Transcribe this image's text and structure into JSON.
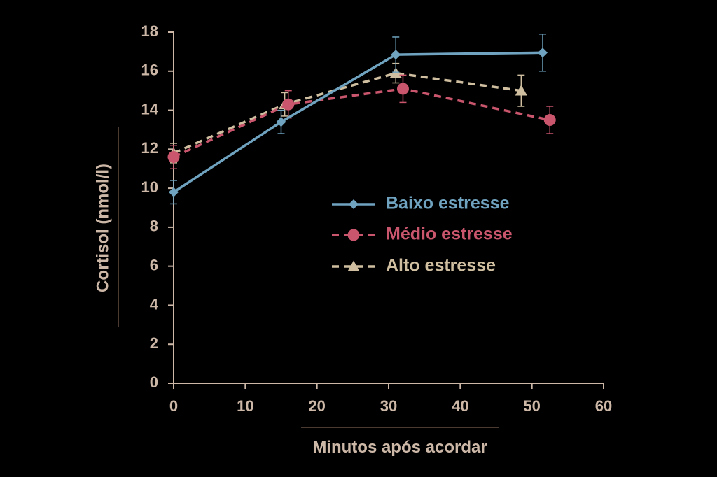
{
  "chart_data": {
    "type": "line",
    "xlabel": "Minutos após acordar",
    "ylabel": "Cortisol (nmol/l)",
    "xlim": [
      0,
      60
    ],
    "ylim": [
      0,
      18
    ],
    "xticks": [
      "0",
      "10",
      "20",
      "30",
      "40",
      "50",
      "60"
    ],
    "yticks": [
      "0",
      "2",
      "4",
      "6",
      "8",
      "10",
      "12",
      "14",
      "16",
      "18"
    ],
    "grid": false,
    "legend_position": "center-right",
    "series": [
      {
        "name": "Baixo estresse",
        "color": "#6fa3bf",
        "line_style": "solid",
        "marker": "diamond",
        "points": [
          {
            "x": 0,
            "y": 9.8,
            "err": 0.6
          },
          {
            "x": 15,
            "y": 13.4,
            "err": 0.6
          },
          {
            "x": 31,
            "y": 16.85,
            "err": 0.9
          },
          {
            "x": 51.5,
            "y": 16.95,
            "err": 0.95
          }
        ]
      },
      {
        "name": "Médio estresse",
        "color": "#c9566d",
        "line_style": "dashed",
        "marker": "circle",
        "points": [
          {
            "x": 0,
            "y": 11.6,
            "err": 0.6
          },
          {
            "x": 16,
            "y": 14.3,
            "err": 0.7
          },
          {
            "x": 32,
            "y": 15.1,
            "err": 0.7
          },
          {
            "x": 52.5,
            "y": 13.5,
            "err": 0.7
          }
        ]
      },
      {
        "name": "Alto estresse",
        "color": "#cfbfa0",
        "line_style": "dashed",
        "marker": "triangle",
        "points": [
          {
            "x": 0,
            "y": 11.8,
            "err": 0.5
          },
          {
            "x": 15.5,
            "y": 14.3,
            "err": 0.6
          },
          {
            "x": 31,
            "y": 15.9,
            "err": 0.5
          },
          {
            "x": 48.5,
            "y": 15.0,
            "err": 0.8
          }
        ]
      }
    ]
  },
  "colors": {
    "background": "#000000",
    "axis": "#cdb8a8",
    "text": "#cdb8a8",
    "divider": "#4a3a30"
  }
}
